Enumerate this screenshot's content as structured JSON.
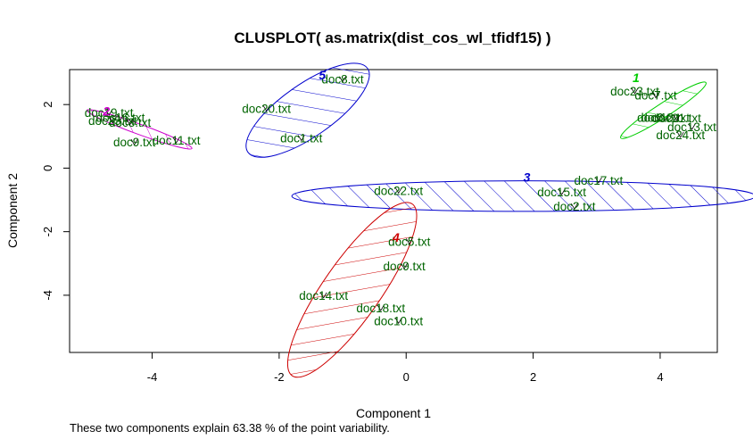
{
  "chart_data": {
    "type": "scatter",
    "title": "CLUSPLOT( as.matrix(dist_cos_wl_tfidf15) )",
    "xlabel": "Component 1",
    "ylabel": "Component 2",
    "xlim": [
      -5.3,
      4.9
    ],
    "ylim": [
      -5.8,
      3.1
    ],
    "xticks": [
      -4,
      -2,
      0,
      2,
      4
    ],
    "yticks": [
      -4,
      -2,
      0,
      2
    ],
    "grid": false,
    "footnote": "These two components explain 63.38 % of the point variability.",
    "clusters": [
      {
        "id": "1",
        "color": "#00cd00",
        "center": [
          4.05,
          1.82
        ],
        "rx": 0.8,
        "ry": 0.22,
        "angle": -33,
        "label_pos": [
          3.62,
          2.85
        ]
      },
      {
        "id": "2",
        "color": "#cd00cd",
        "center": [
          -4.2,
          1.22
        ],
        "rx": 0.88,
        "ry": 0.16,
        "angle": 20,
        "label_pos": [
          -4.72,
          1.8
        ]
      },
      {
        "id": "3",
        "color": "#0000cd",
        "center": [
          1.85,
          -0.88
        ],
        "rx": 3.65,
        "ry": 0.48,
        "angle": 0,
        "label_pos": [
          1.9,
          -0.28
        ]
      },
      {
        "id": "4",
        "color": "#cd0000",
        "center": [
          -0.85,
          -3.83
        ],
        "rx": 1.65,
        "ry": 0.9,
        "angle": -55,
        "label_pos": [
          -0.16,
          -2.18
        ]
      },
      {
        "id": "5",
        "color": "#0000cd",
        "center": [
          -1.55,
          1.82
        ],
        "rx": 1.15,
        "ry": 0.82,
        "angle": -35,
        "label_pos": [
          -1.32,
          2.93
        ]
      }
    ],
    "points": [
      {
        "label": "doc23.txt",
        "x": 3.6,
        "y": 2.43
      },
      {
        "label": "doc7.txt",
        "x": 3.93,
        "y": 2.3
      },
      {
        "label": "doc6.txt",
        "x": 3.97,
        "y": 1.6
      },
      {
        "label": "doc12.txt",
        "x": 4.08,
        "y": 1.6
      },
      {
        "label": "doc21.txt",
        "x": 4.26,
        "y": 1.58
      },
      {
        "label": "doc13.txt",
        "x": 4.5,
        "y": 1.3
      },
      {
        "label": "doc24.txt",
        "x": 4.32,
        "y": 1.05
      },
      {
        "label": "doc19.txt",
        "x": -4.68,
        "y": 1.75
      },
      {
        "label": "doc16.txt",
        "x": -4.5,
        "y": 1.6
      },
      {
        "label": "doc25.txt",
        "x": -4.62,
        "y": 1.5
      },
      {
        "label": "doc3.txt",
        "x": -4.35,
        "y": 1.45
      },
      {
        "label": "doc9.txt",
        "x": -4.28,
        "y": 0.82
      },
      {
        "label": "doc11.txt",
        "x": -3.62,
        "y": 0.88
      },
      {
        "label": "doc20.txt",
        "x": -2.2,
        "y": 1.88
      },
      {
        "label": "doc8.txt",
        "x": -1.0,
        "y": 2.8
      },
      {
        "label": "doc1.txt",
        "x": -1.65,
        "y": 0.95
      },
      {
        "label": "doc22.txt",
        "x": -0.12,
        "y": -0.7
      },
      {
        "label": "doc17.txt",
        "x": 3.03,
        "y": -0.38
      },
      {
        "label": "doc15.txt",
        "x": 2.45,
        "y": -0.75
      },
      {
        "label": "doc2.txt",
        "x": 2.65,
        "y": -1.2
      },
      {
        "label": "doc5.txt",
        "x": 0.05,
        "y": -2.3
      },
      {
        "label": "doc9.txt",
        "x": -0.03,
        "y": -3.08
      },
      {
        "label": "doc14.txt",
        "x": -1.3,
        "y": -4.0
      },
      {
        "label": "doc18.txt",
        "x": -0.4,
        "y": -4.4
      },
      {
        "label": "doc10.txt",
        "x": -0.12,
        "y": -4.8
      }
    ]
  }
}
